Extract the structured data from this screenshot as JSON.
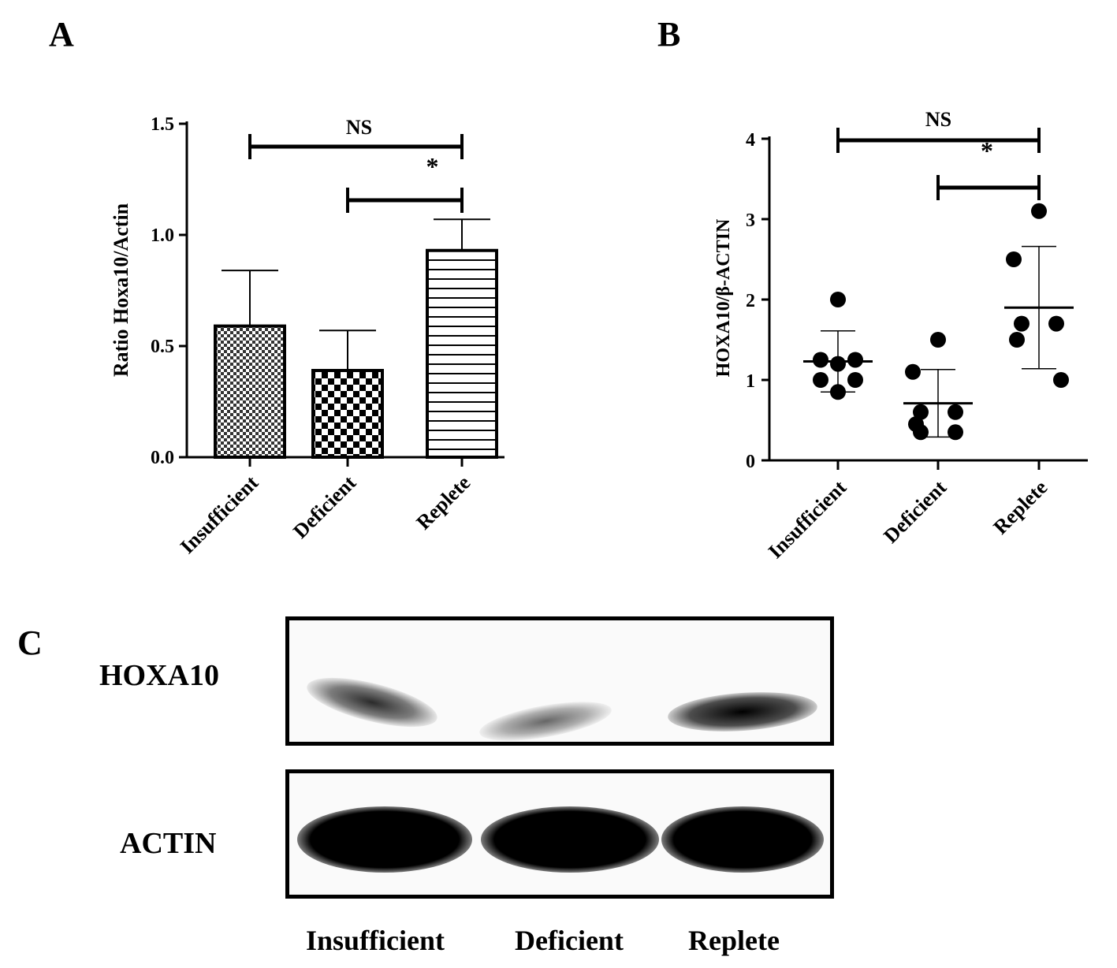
{
  "panels": {
    "a": "A",
    "b": "B",
    "c": "C"
  },
  "chart_data": [
    {
      "panel": "A",
      "type": "bar",
      "categories": [
        "Insufficient",
        "Deficient",
        "Replete"
      ],
      "values": [
        0.59,
        0.39,
        0.93
      ],
      "error_upper": [
        0.84,
        0.57,
        1.07
      ],
      "ylabel": "Ratio Hoxa10/Actin",
      "ylim": [
        0,
        1.5
      ],
      "yticks": [
        "0.0",
        "0.5",
        "1.0",
        "1.5"
      ],
      "patterns": [
        "fine-checker",
        "checker",
        "horizontal-lines"
      ],
      "annotations": [
        {
          "text": "NS",
          "from": "Insufficient",
          "to": "Replete"
        },
        {
          "text": "*",
          "from": "Deficient",
          "to": "Replete"
        }
      ]
    },
    {
      "panel": "B",
      "type": "scatter",
      "categories": [
        "Insufficient",
        "Deficient",
        "Replete"
      ],
      "series": [
        {
          "category": "Insufficient",
          "values": [
            2.0,
            1.25,
            1.25,
            1.2,
            1.0,
            1.0,
            0.85
          ],
          "mean": 1.23,
          "sd_low": 0.85,
          "sd_high": 1.61
        },
        {
          "category": "Deficient",
          "values": [
            1.5,
            1.1,
            0.6,
            0.6,
            0.45,
            0.35,
            0.35
          ],
          "mean": 0.71,
          "sd_low": 0.29,
          "sd_high": 1.13
        },
        {
          "category": "Replete",
          "values": [
            3.1,
            2.5,
            1.7,
            1.7,
            1.5,
            1.0
          ],
          "mean": 1.9,
          "sd_low": 1.14,
          "sd_high": 2.66
        }
      ],
      "ylabel": "HOXA10/β-ACTIN",
      "ylim": [
        0,
        4
      ],
      "yticks": [
        "0",
        "1",
        "2",
        "3",
        "4"
      ],
      "annotations": [
        {
          "text": "NS",
          "from": "Insufficient",
          "to": "Replete"
        },
        {
          "text": "*",
          "from": "Deficient",
          "to": "Replete"
        }
      ]
    }
  ],
  "blot": {
    "rows": [
      {
        "label": "HOXA10",
        "band_intensity": [
          0.75,
          0.45,
          0.9
        ]
      },
      {
        "label": "ACTIN",
        "band_intensity": [
          1.0,
          1.0,
          1.0
        ]
      }
    ],
    "lanes": [
      "Insufficient",
      "Deficient",
      "Replete"
    ]
  }
}
